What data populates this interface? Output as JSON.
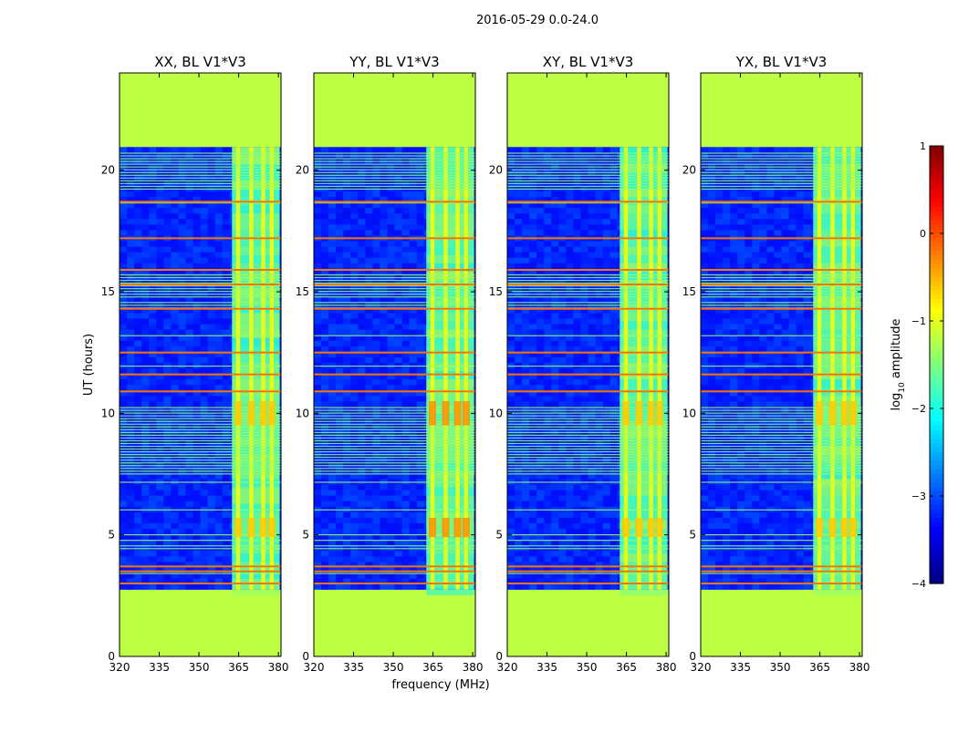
{
  "chart_data": {
    "type": "heatmap",
    "suptitle": "2016-05-29 0.0-24.0",
    "xlabel": "frequency (MHz)",
    "ylabel": "UT (hours)",
    "xlim": [
      320,
      381
    ],
    "ylim": [
      0,
      24
    ],
    "xticks": [
      320,
      335,
      350,
      365,
      380
    ],
    "xtick_labels": [
      "320",
      "335",
      "350",
      "365",
      "380"
    ],
    "yticks": [
      0,
      5,
      10,
      15,
      20
    ],
    "ytick_labels": [
      "0",
      "5",
      "10",
      "15",
      "20"
    ],
    "colorbar": {
      "label": "log10 amplitude",
      "label_main": "log",
      "label_sub": "10",
      "label_rest": " amplitude",
      "range": [
        -4,
        1
      ],
      "ticks": [
        1,
        0,
        -1,
        -2,
        -3,
        -4
      ],
      "tick_labels": [
        "1",
        "0",
        "−1",
        "−2",
        "−3",
        "−4"
      ],
      "colormap": "jet"
    },
    "panels": [
      {
        "title": "XX, BL V1*V3"
      },
      {
        "title": "YY, BL V1*V3"
      },
      {
        "title": "XY, BL V1*V3"
      },
      {
        "title": "YX, BL V1*V3"
      }
    ],
    "data_coverage_hours": [
      2.75,
      20.95
    ],
    "masked_value": -1.2,
    "background_value": -3.2,
    "rfi_band_mhz": [
      362.5,
      380.5
    ],
    "rfi_columns_mhz": [
      364.8,
      369.8,
      374.3,
      377.5
    ],
    "rfi_column_value": -1.0,
    "high_noise_epochs_hours": [
      [
        13.5,
        16.3
      ],
      [
        8.0,
        9.0
      ],
      [
        3.0,
        4.6
      ]
    ],
    "strong_rfi_rows_hours": [
      3.0,
      3.5,
      3.7,
      10.9,
      11.6,
      12.5,
      14.3,
      15.3,
      15.9,
      17.2,
      18.7
    ]
  }
}
